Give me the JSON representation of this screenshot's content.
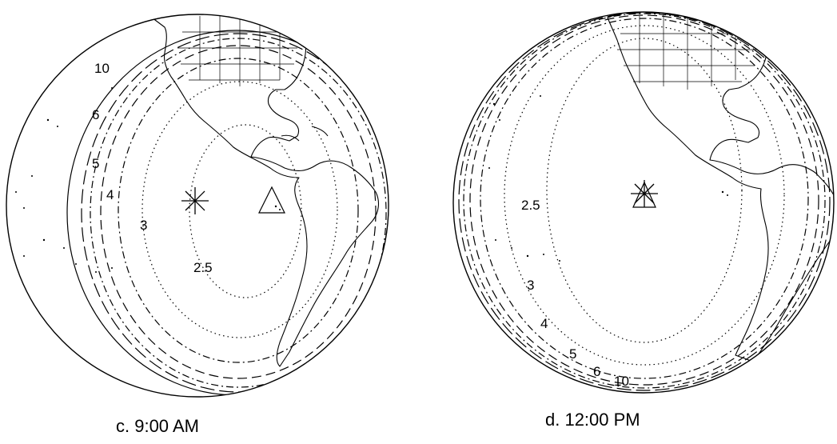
{
  "panels": [
    {
      "id": "c",
      "caption": "c. 9:00 AM",
      "contour_labels": [
        "10",
        "6",
        "5",
        "4",
        "3",
        "2.5"
      ],
      "markers": [
        "asterisk-icon",
        "triangle-icon"
      ]
    },
    {
      "id": "d",
      "caption": "d. 12:00 PM",
      "contour_labels": [
        "2.5",
        "3",
        "4",
        "5",
        "6",
        "10"
      ],
      "markers": [
        "asterisk-icon",
        "triangle-icon"
      ]
    }
  ]
}
